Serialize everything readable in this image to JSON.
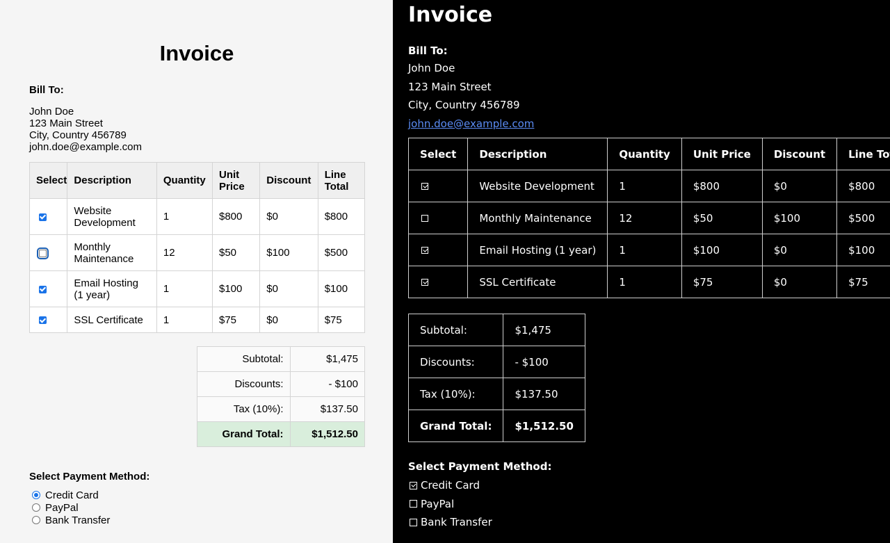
{
  "title": "Invoice",
  "bill_to": {
    "label": "Bill To:",
    "name": "John Doe",
    "street": "123 Main Street",
    "city": "City, Country 456789",
    "email": "john.doe@example.com"
  },
  "table": {
    "headers_left": [
      "Select",
      "Description",
      "Quantity",
      "Unit Price",
      "Discount",
      "Line Total"
    ],
    "headers_right": [
      "Select",
      "Description",
      "Quantity",
      "Unit Price",
      "Discount",
      "Line Total"
    ],
    "rows": [
      {
        "selected": true,
        "description": "Website Development",
        "quantity": "1",
        "unit_price": "$800",
        "discount": "$0",
        "line_total": "$800"
      },
      {
        "selected": false,
        "description": "Monthly Maintenance",
        "quantity": "12",
        "unit_price": "$50",
        "discount": "$100",
        "line_total": "$500"
      },
      {
        "selected": true,
        "description": "Email Hosting (1 year)",
        "quantity": "1",
        "unit_price": "$100",
        "discount": "$0",
        "line_total": "$100"
      },
      {
        "selected": true,
        "description": "SSL Certificate",
        "quantity": "1",
        "unit_price": "$75",
        "discount": "$0",
        "line_total": "$75"
      }
    ]
  },
  "summary": {
    "subtotal_label": "Subtotal:",
    "subtotal": "$1,475",
    "discounts_label": "Discounts:",
    "discounts": "- $100",
    "tax_label": "Tax (10%):",
    "tax": "$137.50",
    "grand_label": "Grand Total:",
    "grand": "$1,512.50"
  },
  "payment": {
    "label": "Select Payment Method:",
    "options": [
      {
        "label": "Credit Card",
        "selected": true
      },
      {
        "label": "PayPal",
        "selected": false
      },
      {
        "label": "Bank Transfer",
        "selected": false
      }
    ]
  },
  "colors": {
    "left_bg": "#f5f5f5",
    "right_bg": "#000000",
    "checkbox_accent": "#1a73e8",
    "grand_total_highlight": "#d9eedc",
    "email_link": "#5b8cf5"
  }
}
